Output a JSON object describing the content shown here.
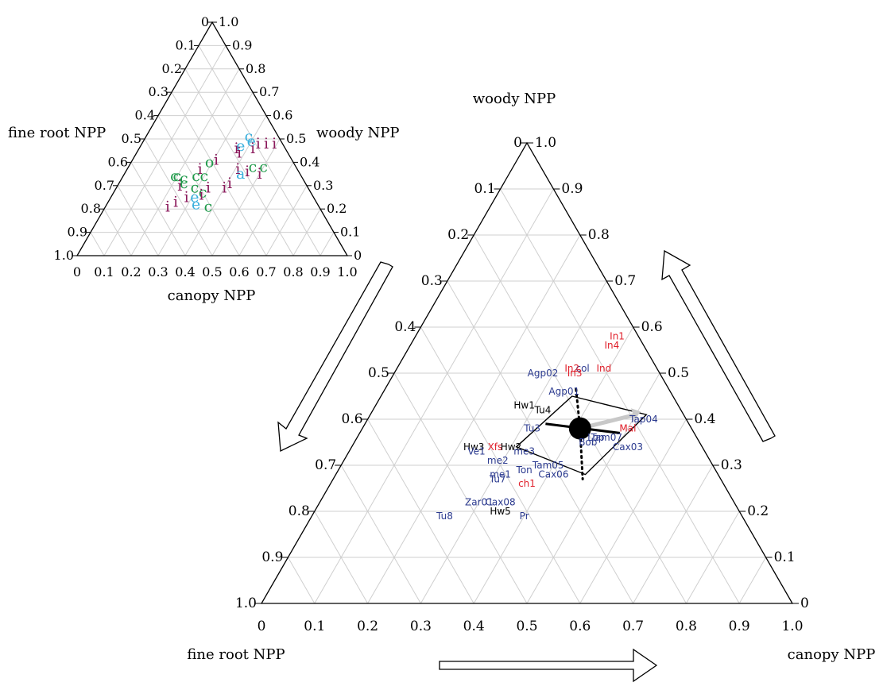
{
  "colors": {
    "grid": "#cfcfcf",
    "navy": "#2b3a8f",
    "red": "#e0202b",
    "black": "#000000",
    "purple": "#8b1a5c",
    "green": "#1f9a4a",
    "cyan": "#3ab0dd",
    "arrow_gray": "#c8c8c8"
  },
  "chart_data": [
    {
      "type": "scatter",
      "subtype": "ternary",
      "id": "inset",
      "axes": {
        "left_edge_title": "fine root NPP",
        "right_edge_title": "woody NPP",
        "bottom_edge_title": "canopy NPP",
        "left_ticks": [
          "0",
          "0.1",
          "0.2",
          "0.3",
          "0.4",
          "0.5",
          "0.6",
          "0.7",
          "0.8",
          "0.9",
          "1.0"
        ],
        "right_ticks": [
          "1.0",
          "0.9",
          "0.8",
          "0.7",
          "0.6",
          "0.5",
          "0.4",
          "0.3",
          "0.2",
          "0.1",
          "0"
        ],
        "bottom_ticks": [
          "0",
          "0.1",
          "0.2",
          "0.3",
          "0.4",
          "0.5",
          "0.6",
          "0.7",
          "0.8",
          "0.9",
          "1.0"
        ]
      },
      "grid": true,
      "points": [
        {
          "label": "c",
          "color": "cyan",
          "canopy": 0.38,
          "woody": 0.51,
          "fine_root": 0.11
        },
        {
          "label": "e",
          "color": "cyan",
          "canopy": 0.4,
          "woody": 0.49,
          "fine_root": 0.11
        },
        {
          "label": "i",
          "color": "purple",
          "canopy": 0.43,
          "woody": 0.48,
          "fine_root": 0.09
        },
        {
          "label": "i",
          "color": "purple",
          "canopy": 0.46,
          "woody": 0.48,
          "fine_root": 0.06
        },
        {
          "label": "i",
          "color": "purple",
          "canopy": 0.49,
          "woody": 0.48,
          "fine_root": 0.03
        },
        {
          "label": "e",
          "color": "cyan",
          "canopy": 0.37,
          "woody": 0.47,
          "fine_root": 0.16
        },
        {
          "label": "i",
          "color": "purple",
          "canopy": 0.36,
          "woody": 0.46,
          "fine_root": 0.18
        },
        {
          "label": "i",
          "color": "purple",
          "canopy": 0.38,
          "woody": 0.44,
          "fine_root": 0.18
        },
        {
          "label": "i",
          "color": "purple",
          "canopy": 0.42,
          "woody": 0.46,
          "fine_root": 0.12
        },
        {
          "label": "o",
          "color": "green",
          "canopy": 0.29,
          "woody": 0.4,
          "fine_root": 0.31
        },
        {
          "label": "i",
          "color": "purple",
          "canopy": 0.31,
          "woody": 0.41,
          "fine_root": 0.28
        },
        {
          "label": "c",
          "color": "green",
          "canopy": 0.46,
          "woody": 0.38,
          "fine_root": 0.16
        },
        {
          "label": "c",
          "color": "green",
          "canopy": 0.5,
          "woody": 0.38,
          "fine_root": 0.12
        },
        {
          "label": "i",
          "color": "purple",
          "canopy": 0.41,
          "woody": 0.37,
          "fine_root": 0.22
        },
        {
          "label": "a",
          "color": "cyan",
          "canopy": 0.43,
          "woody": 0.35,
          "fine_root": 0.22
        },
        {
          "label": "i",
          "color": "purple",
          "canopy": 0.45,
          "woody": 0.36,
          "fine_root": 0.19
        },
        {
          "label": "i",
          "color": "purple",
          "canopy": 0.5,
          "woody": 0.35,
          "fine_root": 0.15
        },
        {
          "label": "i",
          "color": "purple",
          "canopy": 0.27,
          "woody": 0.37,
          "fine_root": 0.36
        },
        {
          "label": "c",
          "color": "green",
          "canopy": 0.19,
          "woody": 0.34,
          "fine_root": 0.47
        },
        {
          "label": "c",
          "color": "green",
          "canopy": 0.2,
          "woody": 0.34,
          "fine_root": 0.46
        },
        {
          "label": "c",
          "color": "green",
          "canopy": 0.23,
          "woody": 0.33,
          "fine_root": 0.44
        },
        {
          "label": "c",
          "color": "green",
          "canopy": 0.27,
          "woody": 0.34,
          "fine_root": 0.39
        },
        {
          "label": "c",
          "color": "green",
          "canopy": 0.3,
          "woody": 0.34,
          "fine_root": 0.36
        },
        {
          "label": "c",
          "color": "green",
          "canopy": 0.24,
          "woody": 0.31,
          "fine_root": 0.45
        },
        {
          "label": "i",
          "color": "purple",
          "canopy": 0.23,
          "woody": 0.3,
          "fine_root": 0.47
        },
        {
          "label": "c",
          "color": "green",
          "canopy": 0.29,
          "woody": 0.29,
          "fine_root": 0.42
        },
        {
          "label": "i",
          "color": "purple",
          "canopy": 0.34,
          "woody": 0.29,
          "fine_root": 0.37
        },
        {
          "label": "i",
          "color": "purple",
          "canopy": 0.4,
          "woody": 0.29,
          "fine_root": 0.31
        },
        {
          "label": "i",
          "color": "purple",
          "canopy": 0.41,
          "woody": 0.31,
          "fine_root": 0.28
        },
        {
          "label": "c",
          "color": "green",
          "canopy": 0.33,
          "woody": 0.27,
          "fine_root": 0.4
        },
        {
          "label": "i",
          "color": "purple",
          "canopy": 0.28,
          "woody": 0.25,
          "fine_root": 0.47
        },
        {
          "label": "e",
          "color": "cyan",
          "canopy": 0.31,
          "woody": 0.25,
          "fine_root": 0.44
        },
        {
          "label": "i",
          "color": "purple",
          "canopy": 0.33,
          "woody": 0.26,
          "fine_root": 0.41
        },
        {
          "label": "i",
          "color": "purple",
          "canopy": 0.25,
          "woody": 0.23,
          "fine_root": 0.52
        },
        {
          "label": "e",
          "color": "cyan",
          "canopy": 0.33,
          "woody": 0.22,
          "fine_root": 0.45
        },
        {
          "label": "c",
          "color": "green",
          "canopy": 0.38,
          "woody": 0.21,
          "fine_root": 0.41
        },
        {
          "label": "i",
          "color": "purple",
          "canopy": 0.23,
          "woody": 0.21,
          "fine_root": 0.56
        }
      ]
    },
    {
      "type": "scatter",
      "subtype": "ternary",
      "id": "main",
      "axes": {
        "top_title": "woody NPP",
        "left_title": "fine root NPP",
        "right_title": "canopy NPP",
        "left_ticks": [
          "0",
          "0.1",
          "0.2",
          "0.3",
          "0.4",
          "0.5",
          "0.6",
          "0.7",
          "0.8",
          "0.9",
          "1.0"
        ],
        "right_ticks": [
          "1.0",
          "0.9",
          "0.8",
          "0.7",
          "0.6",
          "0.5",
          "0.4",
          "0.3",
          "0.2",
          "0.1",
          "0"
        ],
        "bottom_ticks": [
          "0",
          "0.1",
          "0.2",
          "0.3",
          "0.4",
          "0.5",
          "0.6",
          "0.7",
          "0.8",
          "0.9",
          "1.0"
        ]
      },
      "grid": true,
      "points": [
        {
          "label": "In1",
          "color": "red",
          "canopy": 0.38,
          "woody": 0.58,
          "fine_root": 0.04
        },
        {
          "label": "In4",
          "color": "red",
          "canopy": 0.38,
          "woody": 0.56,
          "fine_root": 0.06
        },
        {
          "label": "col",
          "color": "navy",
          "canopy": 0.35,
          "woody": 0.51,
          "fine_root": 0.14
        },
        {
          "label": "Ind",
          "color": "red",
          "canopy": 0.39,
          "woody": 0.51,
          "fine_root": 0.1
        },
        {
          "label": "In2",
          "color": "red",
          "canopy": 0.33,
          "woody": 0.51,
          "fine_root": 0.16
        },
        {
          "label": "In3",
          "color": "red",
          "canopy": 0.34,
          "woody": 0.5,
          "fine_root": 0.16
        },
        {
          "label": "Agp02",
          "color": "navy",
          "canopy": 0.28,
          "woody": 0.5,
          "fine_root": 0.22
        },
        {
          "label": "Agp01",
          "color": "navy",
          "canopy": 0.34,
          "woody": 0.46,
          "fine_root": 0.2
        },
        {
          "label": "Hw1",
          "color": "black",
          "canopy": 0.28,
          "woody": 0.43,
          "fine_root": 0.29
        },
        {
          "label": "Tu4",
          "color": "black",
          "canopy": 0.32,
          "woody": 0.42,
          "fine_root": 0.26
        },
        {
          "label": "Tap04",
          "color": "navy",
          "canopy": 0.52,
          "woody": 0.4,
          "fine_root": 0.08
        },
        {
          "label": "Mal",
          "color": "red",
          "canopy": 0.5,
          "woody": 0.38,
          "fine_root": 0.12
        },
        {
          "label": "Tu3",
          "color": "navy",
          "canopy": 0.32,
          "woody": 0.38,
          "fine_root": 0.3
        },
        {
          "label": "Tam07",
          "color": "navy",
          "canopy": 0.47,
          "woody": 0.36,
          "fine_root": 0.17
        },
        {
          "label": "Cax03",
          "color": "navy",
          "canopy": 0.52,
          "woody": 0.34,
          "fine_root": 0.14
        },
        {
          "label": "Xfs",
          "color": "red",
          "canopy": 0.27,
          "woody": 0.34,
          "fine_root": 0.39
        },
        {
          "label": "Hw2",
          "color": "black",
          "canopy": 0.3,
          "woody": 0.34,
          "fine_root": 0.36
        },
        {
          "label": "Hw3",
          "color": "black",
          "canopy": 0.23,
          "woody": 0.34,
          "fine_root": 0.43
        },
        {
          "label": "Ve1",
          "color": "navy",
          "canopy": 0.24,
          "woody": 0.33,
          "fine_root": 0.43
        },
        {
          "label": "me3",
          "color": "navy",
          "canopy": 0.33,
          "woody": 0.33,
          "fine_root": 0.34
        },
        {
          "label": "me2",
          "color": "navy",
          "canopy": 0.29,
          "woody": 0.31,
          "fine_root": 0.4
        },
        {
          "label": "Tam05",
          "color": "navy",
          "canopy": 0.39,
          "woody": 0.3,
          "fine_root": 0.31
        },
        {
          "label": "me1",
          "color": "navy",
          "canopy": 0.31,
          "woody": 0.28,
          "fine_root": 0.41
        },
        {
          "label": "Ton",
          "color": "navy",
          "canopy": 0.35,
          "woody": 0.29,
          "fine_root": 0.36
        },
        {
          "label": "Cax06",
          "color": "navy",
          "canopy": 0.41,
          "woody": 0.28,
          "fine_root": 0.31
        },
        {
          "label": "Tu7",
          "color": "navy",
          "canopy": 0.31,
          "woody": 0.27,
          "fine_root": 0.42
        },
        {
          "label": "ch1",
          "color": "red",
          "canopy": 0.37,
          "woody": 0.26,
          "fine_root": 0.37
        },
        {
          "label": "Zar01",
          "color": "navy",
          "canopy": 0.3,
          "woody": 0.22,
          "fine_root": 0.48
        },
        {
          "label": "Cax08",
          "color": "navy",
          "canopy": 0.34,
          "woody": 0.22,
          "fine_root": 0.44
        },
        {
          "label": "Hw5",
          "color": "black",
          "canopy": 0.35,
          "woody": 0.2,
          "fine_root": 0.45
        },
        {
          "label": "Pr",
          "color": "navy",
          "canopy": 0.4,
          "woody": 0.19,
          "fine_root": 0.41
        },
        {
          "label": "Tu8",
          "color": "navy",
          "canopy": 0.25,
          "woody": 0.19,
          "fine_root": 0.56
        },
        {
          "label": "Lop",
          "color": "navy",
          "canopy": 0.45,
          "woody": 0.36,
          "fine_root": 0.19
        },
        {
          "label": "Bob",
          "color": "navy",
          "canopy": 0.44,
          "woody": 0.35,
          "fine_root": 0.21
        }
      ],
      "mean": {
        "canopy": 0.41,
        "woody": 0.38,
        "fine_root": 0.21
      },
      "mean_error_bars": {
        "woody_range": [
          0.26,
          0.47
        ],
        "canopy_range": [
          0.36,
          0.47
        ]
      }
    }
  ]
}
